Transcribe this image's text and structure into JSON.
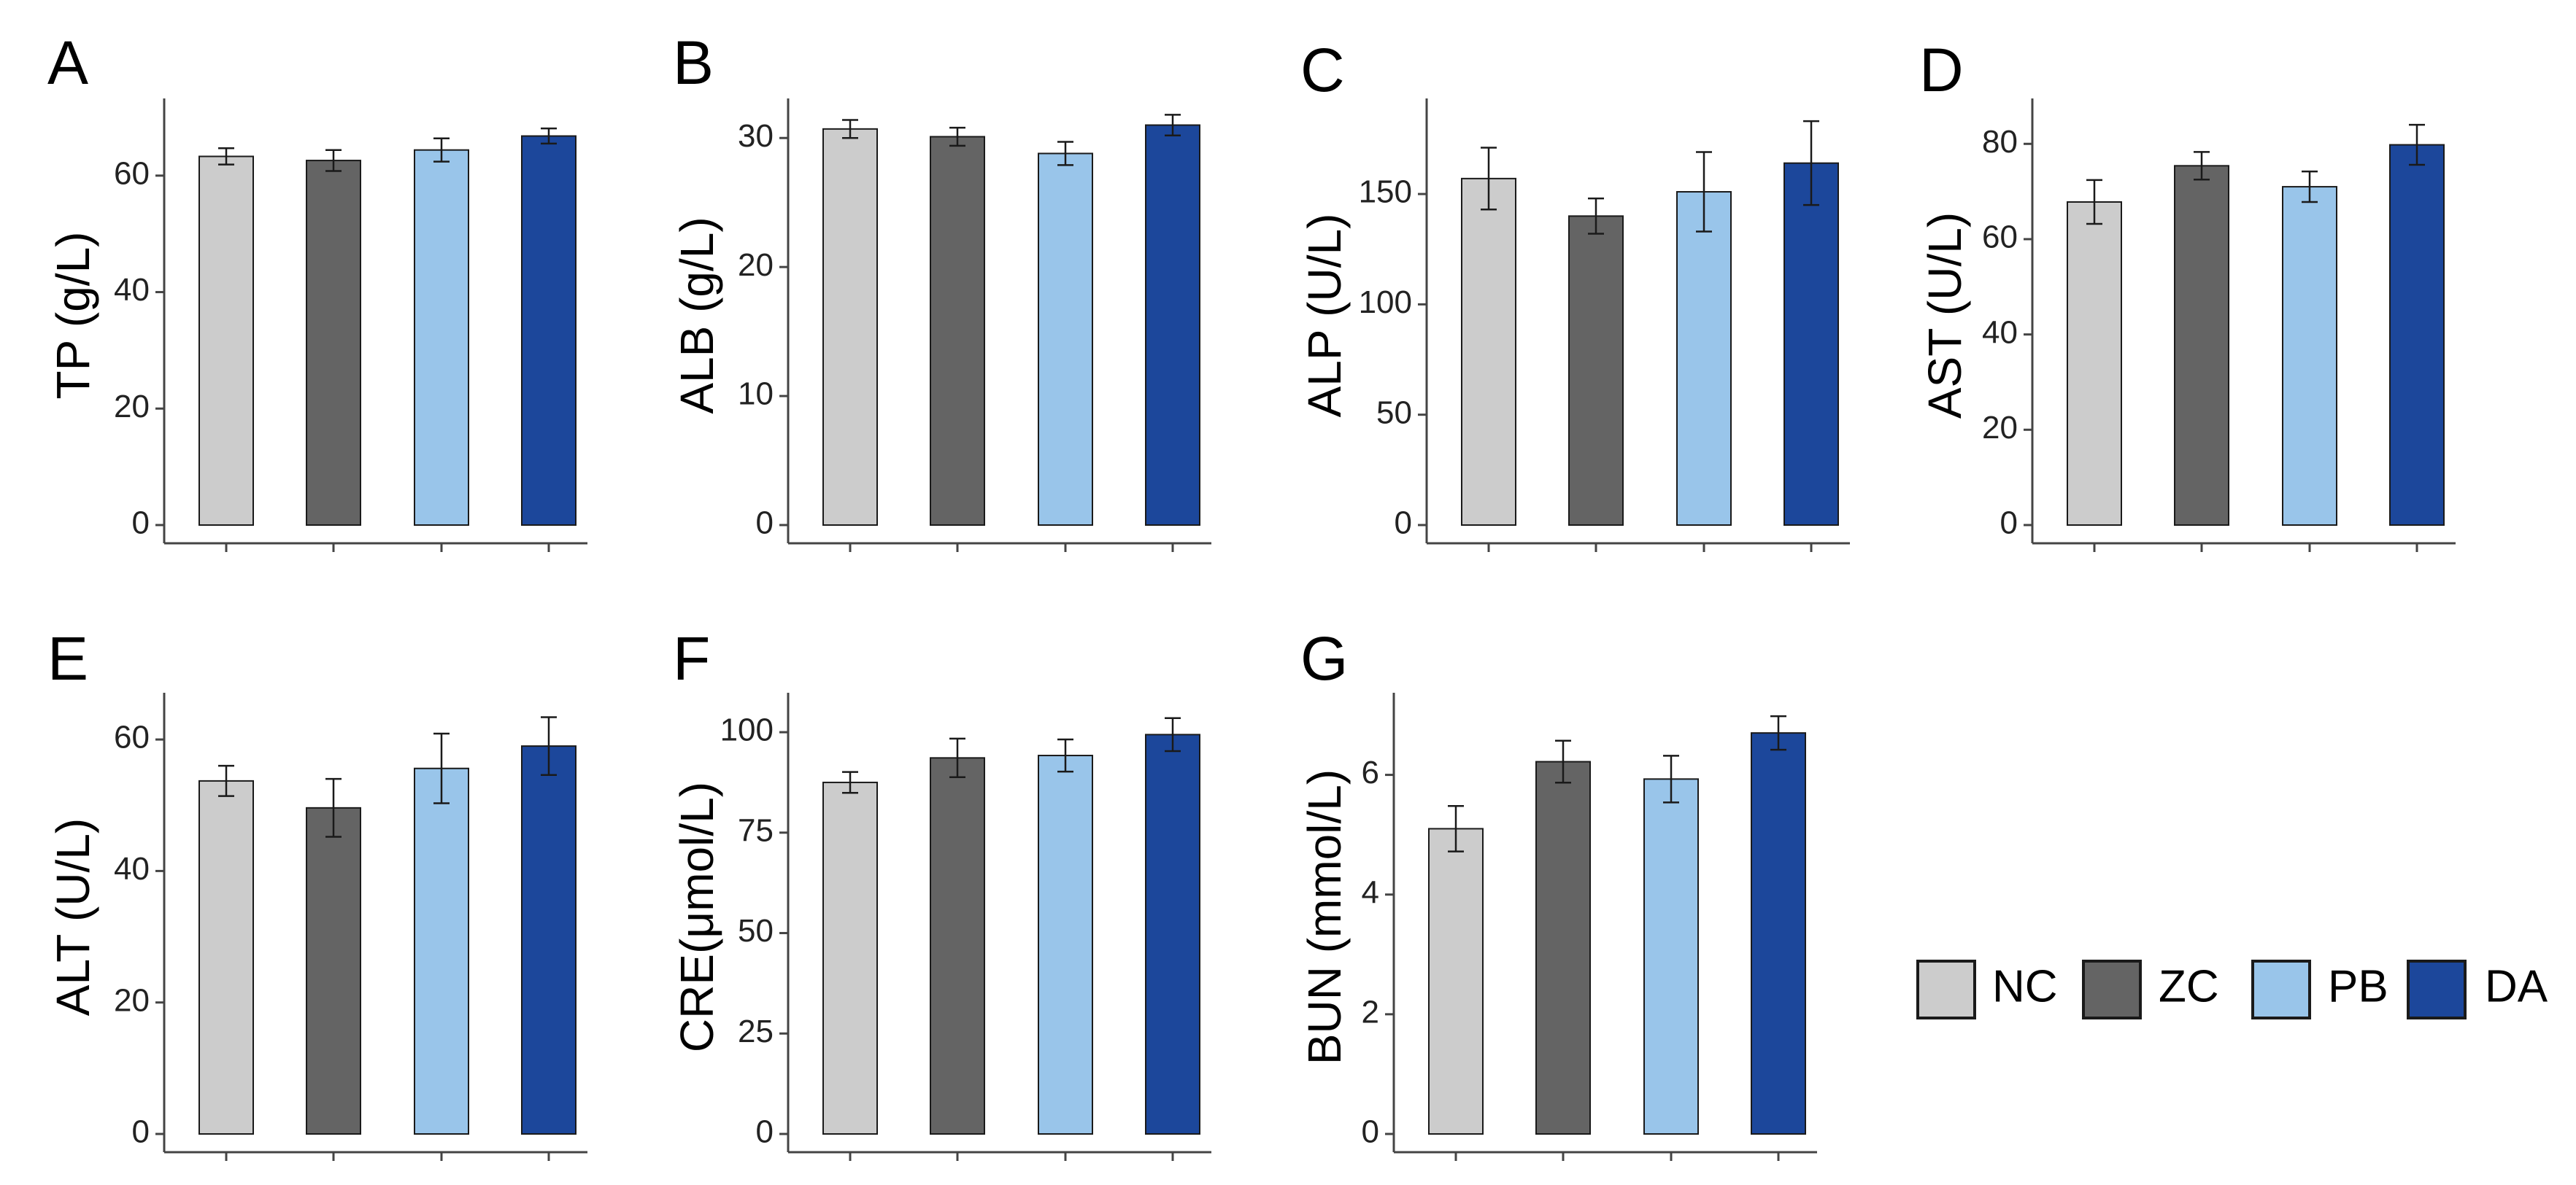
{
  "groups": [
    "NC",
    "ZC",
    "PB",
    "DA"
  ],
  "colors": {
    "NC": "#cccccc",
    "ZC": "#646464",
    "PB": "#99c5ea",
    "DA": "#1c479b",
    "axis": "#444444",
    "bar_border": "#1a1a1a",
    "error_bar": "#1a1a1a"
  },
  "chart_data": [
    {
      "type": "bar",
      "panel": "A",
      "ylabel": "TP (g/L)",
      "ylim": [
        0,
        72
      ],
      "yticks": [
        "0",
        "20",
        "40",
        "60"
      ],
      "ytick_values": [
        0,
        20,
        40,
        60
      ],
      "categories": [
        "NC",
        "ZC",
        "PB",
        "DA"
      ],
      "values": [
        63.3,
        62.6,
        64.4,
        66.8
      ],
      "errors": [
        1.4,
        1.8,
        2.0,
        1.3
      ]
    },
    {
      "type": "bar",
      "panel": "B",
      "ylabel": "ALB (g/L)",
      "ylim": [
        0,
        32.5
      ],
      "yticks": [
        "0",
        "10",
        "20",
        "30"
      ],
      "ytick_values": [
        0,
        10,
        20,
        30
      ],
      "categories": [
        "NC",
        "ZC",
        "PB",
        "DA"
      ],
      "values": [
        30.7,
        30.1,
        28.8,
        31.0
      ],
      "errors": [
        0.7,
        0.7,
        0.9,
        0.8
      ]
    },
    {
      "type": "bar",
      "panel": "C",
      "ylabel": "ALP (U/L)",
      "ylim": [
        0,
        190
      ],
      "yticks": [
        "0",
        "50",
        "100",
        "150"
      ],
      "ytick_values": [
        0,
        50,
        100,
        150
      ],
      "categories": [
        "NC",
        "ZC",
        "PB",
        "DA"
      ],
      "values": [
        157,
        140,
        151,
        164
      ],
      "errors": [
        14,
        8,
        18,
        19
      ]
    },
    {
      "type": "bar",
      "panel": "D",
      "ylabel": "AST (U/L)",
      "ylim": [
        0,
        88
      ],
      "yticks": [
        "0",
        "20",
        "40",
        "60",
        "80"
      ],
      "ytick_values": [
        0,
        20,
        40,
        60,
        80
      ],
      "categories": [
        "NC",
        "ZC",
        "PB",
        "DA"
      ],
      "values": [
        67.8,
        75.4,
        71.0,
        79.8
      ],
      "errors": [
        4.6,
        2.9,
        3.2,
        4.2
      ]
    },
    {
      "type": "bar",
      "panel": "E",
      "ylabel": "ALT (U/L)",
      "ylim": [
        0,
        66
      ],
      "yticks": [
        "0",
        "20",
        "40",
        "60"
      ],
      "ytick_values": [
        0,
        20,
        40,
        60
      ],
      "categories": [
        "NC",
        "ZC",
        "PB",
        "DA"
      ],
      "values": [
        53.7,
        49.6,
        55.6,
        59.0
      ],
      "errors": [
        2.3,
        4.4,
        5.3,
        4.4
      ]
    },
    {
      "type": "bar",
      "panel": "F",
      "ylabel": "CRE(μmol/L)",
      "ylim": [
        0,
        108
      ],
      "yticks": [
        "0",
        "25",
        "50",
        "75",
        "100"
      ],
      "ytick_values": [
        0,
        25,
        50,
        75,
        100
      ],
      "categories": [
        "NC",
        "ZC",
        "PB",
        "DA"
      ],
      "values": [
        87.5,
        93.6,
        94.2,
        99.4
      ],
      "errors": [
        2.6,
        4.8,
        4.0,
        4.1
      ]
    },
    {
      "type": "bar",
      "panel": "G",
      "ylabel": "BUN (mmol/L)",
      "ylim": [
        0,
        7.25
      ],
      "yticks": [
        "0",
        "2",
        "4",
        "6"
      ],
      "ytick_values": [
        0,
        2,
        4,
        6
      ],
      "categories": [
        "NC",
        "ZC",
        "PB",
        "DA"
      ],
      "values": [
        5.1,
        6.22,
        5.93,
        6.7
      ],
      "errors": [
        0.38,
        0.35,
        0.39,
        0.28
      ]
    }
  ],
  "legend": [
    {
      "group": "NC",
      "label": "NC"
    },
    {
      "group": "ZC",
      "label": "ZC"
    },
    {
      "group": "PB",
      "label": "PB"
    },
    {
      "group": "DA",
      "label": "DA"
    }
  ]
}
